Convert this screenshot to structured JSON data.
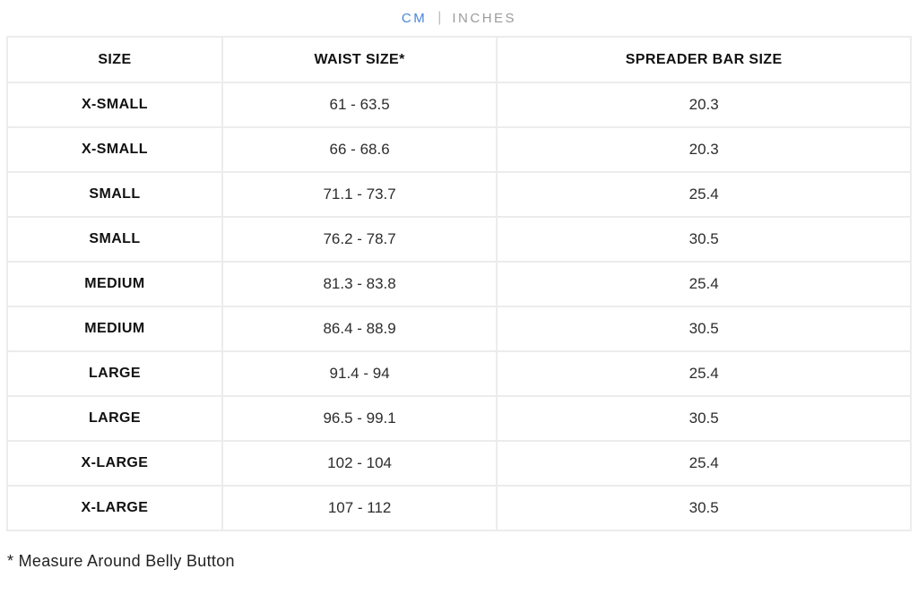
{
  "unit_toggle": {
    "cm_label": "CM",
    "separator": "|",
    "inches_label": "INCHES",
    "active_color": "#4a86d8",
    "inactive_color": "#9b9b9b"
  },
  "table": {
    "columns": [
      "SIZE",
      "WAIST SIZE*",
      "SPREADER BAR SIZE"
    ],
    "rows": [
      {
        "size": "X-SMALL",
        "waist": "61 - 63.5",
        "spreader": "20.3"
      },
      {
        "size": "X-SMALL",
        "waist": "66 - 68.6",
        "spreader": "20.3"
      },
      {
        "size": "SMALL",
        "waist": "71.1 - 73.7",
        "spreader": "25.4"
      },
      {
        "size": "SMALL",
        "waist": "76.2 - 78.7",
        "spreader": "30.5"
      },
      {
        "size": "MEDIUM",
        "waist": "81.3 - 83.8",
        "spreader": "25.4"
      },
      {
        "size": "MEDIUM",
        "waist": "86.4 - 88.9",
        "spreader": "30.5"
      },
      {
        "size": "LARGE",
        "waist": "91.4 - 94",
        "spreader": "25.4"
      },
      {
        "size": "LARGE",
        "waist": "96.5 - 99.1",
        "spreader": "30.5"
      },
      {
        "size": "X-LARGE",
        "waist": "102 - 104",
        "spreader": "25.4"
      },
      {
        "size": "X-LARGE",
        "waist": "107 - 112",
        "spreader": "30.5"
      }
    ]
  },
  "footnote": "* Measure Around Belly Button"
}
